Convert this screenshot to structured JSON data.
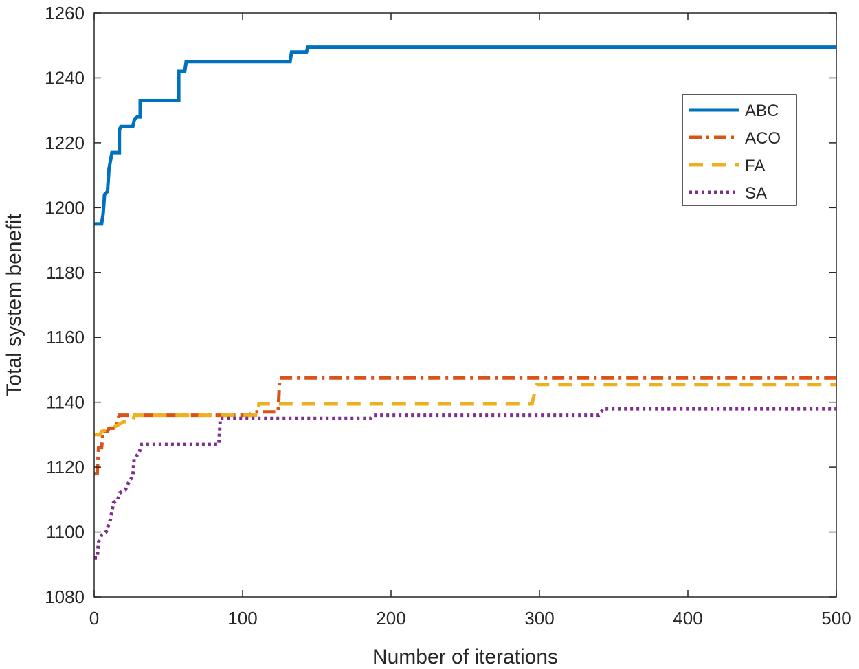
{
  "chart_data": {
    "type": "line",
    "title": "",
    "xlabel": "Number of iterations",
    "ylabel": "Total system benefit",
    "xlim": [
      0,
      500
    ],
    "ylim": [
      1080,
      1260
    ],
    "xticks": [
      0,
      100,
      200,
      300,
      400,
      500
    ],
    "yticks": [
      1080,
      1100,
      1120,
      1140,
      1160,
      1180,
      1200,
      1220,
      1240,
      1260
    ],
    "grid": false,
    "legend_position": "top-right",
    "series": [
      {
        "name": "ABC",
        "color": "#0072BD",
        "style": "solid",
        "points": [
          [
            0,
            1195
          ],
          [
            5,
            1195
          ],
          [
            6,
            1198
          ],
          [
            7,
            1204
          ],
          [
            9,
            1205
          ],
          [
            10,
            1212
          ],
          [
            12,
            1217
          ],
          [
            17,
            1217
          ],
          [
            17,
            1224
          ],
          [
            18,
            1225
          ],
          [
            26,
            1225
          ],
          [
            27,
            1227
          ],
          [
            29,
            1228
          ],
          [
            31,
            1228
          ],
          [
            31,
            1233
          ],
          [
            57,
            1233
          ],
          [
            57,
            1242
          ],
          [
            61,
            1242
          ],
          [
            62,
            1245
          ],
          [
            132,
            1245
          ],
          [
            133,
            1248
          ],
          [
            143,
            1248
          ],
          [
            144,
            1249.5
          ],
          [
            500,
            1249.5
          ]
        ]
      },
      {
        "name": "ACO",
        "color": "#D95319",
        "style": "dashdot",
        "points": [
          [
            0,
            1118
          ],
          [
            2,
            1118
          ],
          [
            3,
            1126
          ],
          [
            5,
            1126
          ],
          [
            6,
            1131
          ],
          [
            9,
            1131
          ],
          [
            10,
            1132
          ],
          [
            15,
            1132
          ],
          [
            16,
            1135
          ],
          [
            17,
            1136
          ],
          [
            105,
            1136
          ],
          [
            106,
            1137
          ],
          [
            124,
            1137
          ],
          [
            125,
            1147.5
          ],
          [
            500,
            1147.5
          ]
        ]
      },
      {
        "name": "FA",
        "color": "#EDB120",
        "style": "dashed",
        "points": [
          [
            0,
            1130
          ],
          [
            4,
            1130
          ],
          [
            5,
            1131
          ],
          [
            12,
            1132
          ],
          [
            20,
            1134
          ],
          [
            26,
            1134
          ],
          [
            27,
            1136
          ],
          [
            110,
            1136
          ],
          [
            111,
            1139.5
          ],
          [
            295,
            1139.5
          ],
          [
            298,
            1145.5
          ],
          [
            500,
            1145.5
          ]
        ]
      },
      {
        "name": "SA",
        "color": "#7E2F8E",
        "style": "dotted",
        "points": [
          [
            0,
            1092
          ],
          [
            2,
            1092
          ],
          [
            3,
            1097
          ],
          [
            5,
            1099
          ],
          [
            8,
            1100
          ],
          [
            11,
            1104
          ],
          [
            13,
            1109
          ],
          [
            16,
            1110
          ],
          [
            17,
            1112
          ],
          [
            21,
            1113
          ],
          [
            24,
            1116
          ],
          [
            26,
            1117
          ],
          [
            27,
            1123
          ],
          [
            30,
            1124
          ],
          [
            32,
            1127
          ],
          [
            84,
            1127
          ],
          [
            85,
            1135
          ],
          [
            186,
            1135
          ],
          [
            188,
            1136
          ],
          [
            340,
            1136
          ],
          [
            343,
            1138
          ],
          [
            500,
            1138
          ]
        ]
      }
    ]
  }
}
